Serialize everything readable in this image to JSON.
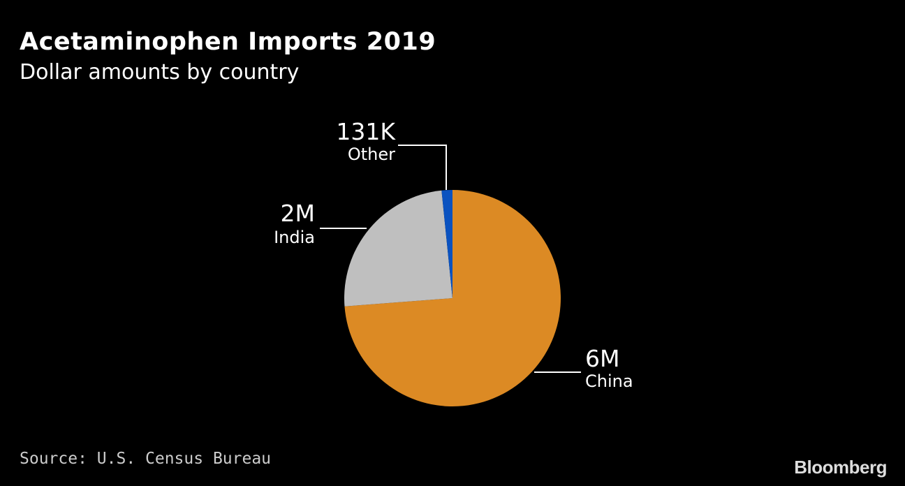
{
  "chart_data": {
    "type": "pie",
    "title": "Acetaminophen Imports 2019",
    "subtitle": "Dollar amounts by country",
    "slices": [
      {
        "label": "China",
        "value": 6000000,
        "display": "6M",
        "color": "#dc8a24"
      },
      {
        "label": "India",
        "value": 2000000,
        "display": "2M",
        "color": "#bfbfbf"
      },
      {
        "label": "Other",
        "value": 131000,
        "display": "131K",
        "color": "#0a52c0"
      }
    ],
    "start": "top",
    "direction": "clockwise"
  },
  "source": "Source: U.S. Census Bureau",
  "logo": "Bloomberg"
}
